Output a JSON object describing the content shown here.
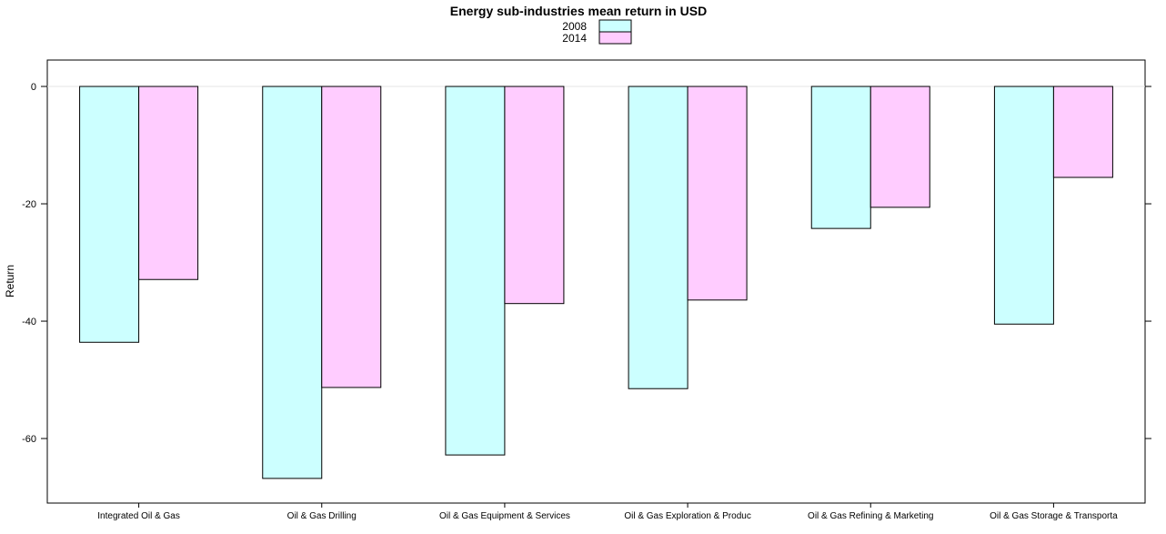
{
  "chart_data": {
    "type": "bar",
    "title": "Energy sub-industries mean return in USD",
    "xlabel": "",
    "ylabel": "Return",
    "categories": [
      "Integrated Oil & Gas",
      "Oil & Gas Drilling",
      "Oil & Gas Equipment & Services",
      "Oil & Gas Exploration & Produc",
      "Oil & Gas Refining & Marketing",
      "Oil & Gas Storage & Transporta"
    ],
    "series": [
      {
        "name": "2008",
        "color": "#ccffff",
        "values": [
          -43.6,
          -66.8,
          -62.8,
          -51.5,
          -24.2,
          -40.5
        ]
      },
      {
        "name": "2014",
        "color": "#ffccff",
        "values": [
          -32.9,
          -51.3,
          -37.0,
          -36.4,
          -20.6,
          -15.5
        ]
      }
    ],
    "ylim": [
      -71,
      4.5
    ],
    "yticks": [
      0,
      -20,
      -40,
      -60
    ],
    "yticks_labels": [
      "0",
      "-20",
      "-40",
      "-60"
    ],
    "reference_line": 0,
    "legend_position": "top-center",
    "grid": false
  }
}
